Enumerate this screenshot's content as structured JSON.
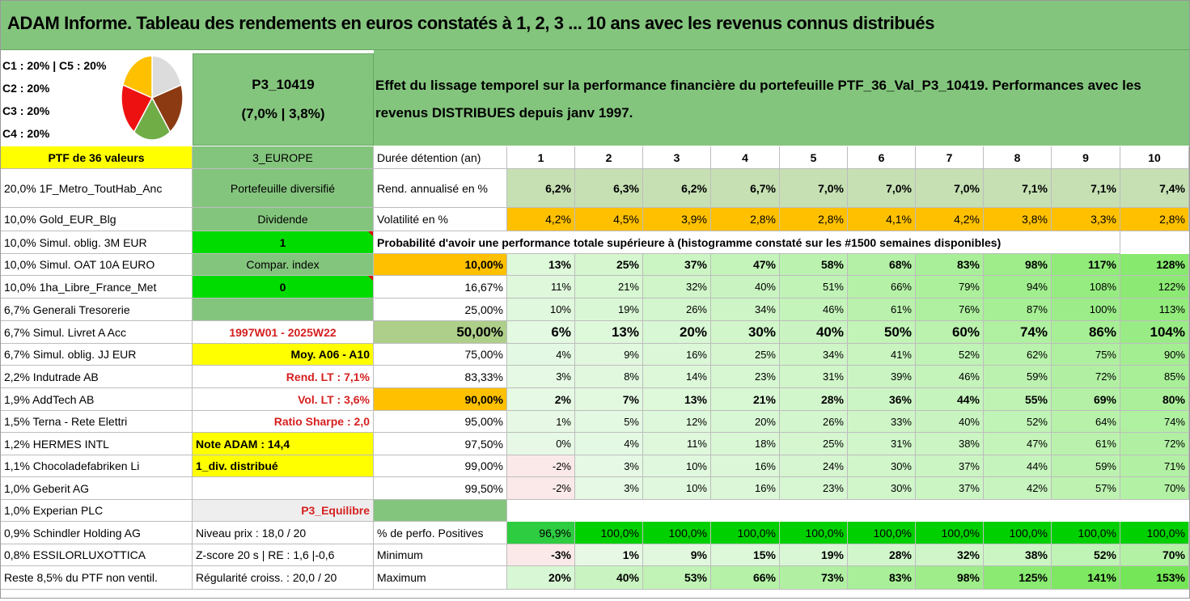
{
  "title": "ADAM Informe. Tableau des rendements en euros constatés à 1, 2, 3 ... 10 ans avec les revenus connus distribués",
  "pie": {
    "legend": [
      "C1 : 20% | C5 : 20%",
      "C2 : 20%",
      "C3 : 20%",
      "C4 : 20%"
    ],
    "slices": [
      {
        "name": "C1",
        "value": 20,
        "color": "#dcdcdc"
      },
      {
        "name": "C2",
        "value": 20,
        "color": "#8b3a12"
      },
      {
        "name": "C3",
        "value": 20,
        "color": "#70ad47"
      },
      {
        "name": "C4",
        "value": 20,
        "color": "#ee1111"
      },
      {
        "name": "C5",
        "value": 20,
        "color": "#ffc000"
      }
    ]
  },
  "portfolio": {
    "code": "P3_10419",
    "stats": "(7,0% | 3,8%)"
  },
  "description": "Effet du lissage temporel sur la performance financière du portefeuille PTF_36_Val_P3_10419. Performances avec les revenus DISTRIBUES depuis janv 1997.",
  "left_rows": [
    "PTF de 36 valeurs",
    "20,0% 1F_Metro_ToutHab_Anc",
    "10,0% Gold_EUR_Blg",
    "10,0% Simul. oblig. 3M EUR",
    "10,0% Simul. OAT 10A EURO",
    "10,0% 1ha_Libre_France_Met",
    "6,7% Generali Tresorerie",
    "6,7% Simul. Livret A Acc",
    "6,7% Simul. oblig. JJ EUR",
    "2,2% Indutrade AB",
    "1,9% AddTech AB",
    "1,5% Terna - Rete Elettri",
    "1,2% HERMES INTL",
    "1,1% Chocoladefabriken Li",
    "1,0% Geberit AG",
    "1,0% Experian PLC",
    "0,9% Schindler Holding AG",
    "0,8% ESSILORLUXOTTICA",
    "Reste 8,5% du PTF non ventil."
  ],
  "mid_rows": [
    "3_EUROPE",
    "Portefeuille diversifié",
    "Dividende",
    "1",
    "Compar. index",
    "0",
    "",
    "1997W01 - 2025W22",
    "Moy. A06 - A10",
    "Rend. LT : 7,1%",
    "Vol. LT : 3,6%",
    "Ratio Sharpe : 2,0",
    "Note ADAM : 14,4",
    "1_div. distribué",
    "",
    "P3_Equilibre",
    "Niveau prix : 18,0 / 20",
    "Z-score 20 s | RE : 1,6 |-0,6",
    "Régularité croiss. : 20,0 / 20"
  ],
  "header": {
    "label": "Durée détention (an)",
    "years": [
      "1",
      "2",
      "3",
      "4",
      "5",
      "6",
      "7",
      "8",
      "9",
      "10"
    ]
  },
  "rend": {
    "label": "Rend. annualisé en %",
    "values": [
      "6,2%",
      "6,3%",
      "6,2%",
      "6,7%",
      "7,0%",
      "7,0%",
      "7,0%",
      "7,1%",
      "7,1%",
      "7,4%"
    ]
  },
  "vol": {
    "label": "Volatilité en %",
    "values": [
      "4,2%",
      "4,5%",
      "3,9%",
      "2,8%",
      "2,8%",
      "4,1%",
      "4,2%",
      "3,8%",
      "3,3%",
      "2,8%"
    ]
  },
  "prob_title": "Probabilité d'avoir une performance totale supérieure à (histogramme constaté sur les #1500 semaines disponibles)",
  "prob_rows": [
    {
      "label": "10,00%",
      "values": [
        "13%",
        "25%",
        "37%",
        "47%",
        "58%",
        "68%",
        "83%",
        "98%",
        "117%",
        "128%"
      ]
    },
    {
      "label": "16,67%",
      "values": [
        "11%",
        "21%",
        "32%",
        "40%",
        "51%",
        "66%",
        "79%",
        "94%",
        "108%",
        "122%"
      ]
    },
    {
      "label": "25,00%",
      "values": [
        "10%",
        "19%",
        "26%",
        "34%",
        "46%",
        "61%",
        "76%",
        "87%",
        "100%",
        "113%"
      ]
    },
    {
      "label": "50,00%",
      "values": [
        "6%",
        "13%",
        "20%",
        "30%",
        "40%",
        "50%",
        "60%",
        "74%",
        "86%",
        "104%"
      ]
    },
    {
      "label": "75,00%",
      "values": [
        "4%",
        "9%",
        "16%",
        "25%",
        "34%",
        "41%",
        "52%",
        "62%",
        "75%",
        "90%"
      ]
    },
    {
      "label": "83,33%",
      "values": [
        "3%",
        "8%",
        "14%",
        "23%",
        "31%",
        "39%",
        "46%",
        "59%",
        "72%",
        "85%"
      ]
    },
    {
      "label": "90,00%",
      "values": [
        "2%",
        "7%",
        "13%",
        "21%",
        "28%",
        "36%",
        "44%",
        "55%",
        "69%",
        "80%"
      ]
    },
    {
      "label": "95,00%",
      "values": [
        "1%",
        "5%",
        "12%",
        "20%",
        "26%",
        "33%",
        "40%",
        "52%",
        "64%",
        "74%"
      ]
    },
    {
      "label": "97,50%",
      "values": [
        "0%",
        "4%",
        "11%",
        "18%",
        "25%",
        "31%",
        "38%",
        "47%",
        "61%",
        "72%"
      ]
    },
    {
      "label": "99,00%",
      "values": [
        "-2%",
        "3%",
        "10%",
        "16%",
        "24%",
        "30%",
        "37%",
        "44%",
        "59%",
        "71%"
      ]
    },
    {
      "label": "99,50%",
      "values": [
        "-2%",
        "3%",
        "10%",
        "16%",
        "23%",
        "30%",
        "37%",
        "42%",
        "57%",
        "70%"
      ]
    }
  ],
  "pos": {
    "label": "% de perfo. Positives",
    "values": [
      "96,9%",
      "100,0%",
      "100,0%",
      "100,0%",
      "100,0%",
      "100,0%",
      "100,0%",
      "100,0%",
      "100,0%",
      "100,0%"
    ]
  },
  "min": {
    "label": "Minimum",
    "values": [
      "-3%",
      "1%",
      "9%",
      "15%",
      "19%",
      "28%",
      "32%",
      "38%",
      "52%",
      "70%"
    ]
  },
  "max": {
    "label": "Maximum",
    "values": [
      "20%",
      "40%",
      "53%",
      "66%",
      "73%",
      "83%",
      "98%",
      "125%",
      "141%",
      "153%"
    ]
  },
  "colors": {
    "title_green": "#84c57e",
    "yellow": "#ffff00",
    "orange": "#ffc000",
    "bright_green": "#00dc00",
    "red_text": "#d62020"
  }
}
